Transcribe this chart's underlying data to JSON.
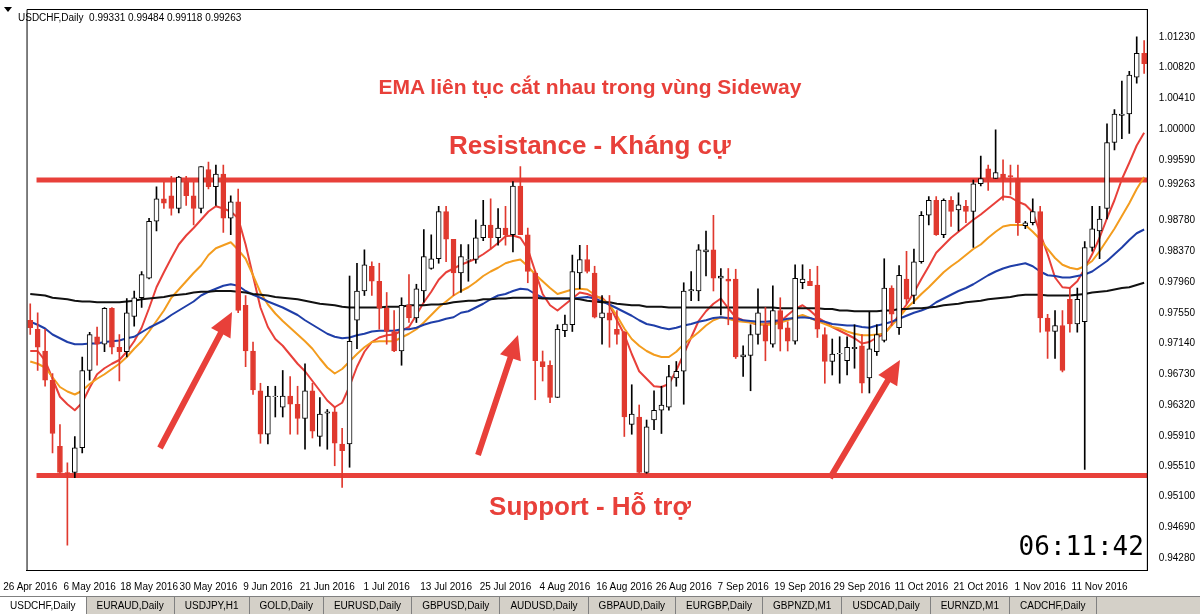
{
  "chart_data": {
    "type": "candlestick",
    "title": "EMA liên tục cắt nhau trong vùng Sideway",
    "subtitle": "USDCHF,Daily  0.99331 0.99484 0.99118 0.99263",
    "categories": [
      "26 Apr 2016",
      null,
      null,
      null,
      null,
      null,
      null,
      null,
      "6 May 2016",
      null,
      null,
      null,
      null,
      null,
      null,
      null,
      "18 May 2016",
      null,
      null,
      null,
      null,
      null,
      null,
      null,
      "30 May 2016",
      null,
      null,
      null,
      null,
      null,
      null,
      null,
      "9 Jun 2016",
      null,
      null,
      null,
      null,
      null,
      null,
      null,
      "21 Jun 2016",
      null,
      null,
      null,
      null,
      null,
      null,
      null,
      "1 Jul 2016",
      null,
      null,
      null,
      null,
      null,
      null,
      null,
      "13 Jul 2016",
      null,
      null,
      null,
      null,
      null,
      null,
      null,
      "25 Jul 2016",
      null,
      null,
      null,
      null,
      null,
      null,
      null,
      "4 Aug 2016",
      null,
      null,
      null,
      null,
      null,
      null,
      null,
      "16 Aug 2016",
      null,
      null,
      null,
      null,
      null,
      null,
      null,
      "26 Aug 2016",
      null,
      null,
      null,
      null,
      null,
      null,
      null,
      "7 Sep 2016",
      null,
      null,
      null,
      null,
      null,
      null,
      null,
      "19 Sep 2016",
      null,
      null,
      null,
      null,
      null,
      null,
      null,
      "29 Sep 2016",
      null,
      null,
      null,
      null,
      null,
      null,
      null,
      "11 Oct 2016",
      null,
      null,
      null,
      null,
      null,
      null,
      null,
      "21 Oct 2016",
      null,
      null,
      null,
      null,
      null,
      null,
      null,
      "1 Nov 2016",
      null,
      null,
      null,
      null,
      null,
      null,
      null,
      "11 Nov 2016",
      null,
      null,
      null,
      null,
      null,
      null
    ],
    "series": [
      {
        "type": "line",
        "color": "#111111",
        "values": [
          0.978,
          0.9779,
          0.9778,
          0.9775,
          0.9774,
          0.9773,
          0.9771,
          0.977,
          0.977,
          0.9769,
          0.9769,
          0.9769,
          0.9769,
          0.977,
          0.9771,
          0.9773,
          0.9774,
          0.9775,
          0.9776,
          0.9778,
          0.9779,
          0.978,
          0.9782,
          0.9783,
          0.9783,
          0.9784,
          0.9784,
          0.9784,
          0.9783,
          0.9782,
          0.978,
          0.9779,
          0.9778,
          0.9776,
          0.9775,
          0.9774,
          0.9773,
          0.9771,
          0.9769,
          0.9767,
          0.9766,
          0.9765,
          0.9763,
          0.9762,
          0.9762,
          0.9762,
          0.9762,
          0.9762,
          0.9763,
          0.9763,
          0.9763,
          0.9765,
          0.9765,
          0.9765,
          0.9766,
          0.9766,
          0.9767,
          0.9769,
          0.977,
          0.9771,
          0.9771,
          0.9773,
          0.9773,
          0.9774,
          0.9774,
          0.9775,
          0.9775,
          0.9775,
          0.9775,
          0.9774,
          0.9774,
          0.9774,
          0.9774,
          0.9774,
          0.9773,
          0.9771,
          0.977,
          0.9769,
          0.9769,
          0.9767,
          0.9766,
          0.9765,
          0.9765,
          0.9763,
          0.9763,
          0.9763,
          0.9762,
          0.9762,
          0.9762,
          0.9762,
          0.9762,
          0.9762,
          0.9762,
          0.9762,
          0.9762,
          0.9762,
          0.9762,
          0.9762,
          0.9762,
          0.9762,
          0.9762,
          0.9761,
          0.9761,
          0.9761,
          0.9761,
          0.9761,
          0.9761,
          0.976,
          0.976,
          0.9758,
          0.9758,
          0.9757,
          0.9757,
          0.9757,
          0.9757,
          0.9758,
          0.9758,
          0.976,
          0.976,
          0.9761,
          0.9761,
          0.9762,
          0.9763,
          0.9765,
          0.9766,
          0.9767,
          0.9769,
          0.977,
          0.9771,
          0.9773,
          0.9774,
          0.9775,
          0.9776,
          0.9778,
          0.9779,
          0.9779,
          0.9779,
          0.9778,
          0.9778,
          0.9778,
          0.9778,
          0.9779,
          0.978,
          0.9782,
          0.9783,
          0.9784,
          0.9786,
          0.9788,
          0.9789,
          0.9792,
          0.9795
        ]
      },
      {
        "type": "line",
        "color": "#1f3ea8",
        "values": [
          0.9743,
          0.9739,
          0.9734,
          0.9726,
          0.9721,
          0.9716,
          0.9713,
          0.9713,
          0.9714,
          0.9714,
          0.9716,
          0.9717,
          0.9718,
          0.9721,
          0.9723,
          0.9729,
          0.9735,
          0.974,
          0.9745,
          0.9752,
          0.9758,
          0.9764,
          0.977,
          0.9778,
          0.9783,
          0.9787,
          0.9791,
          0.9793,
          0.9791,
          0.9784,
          0.9779,
          0.9775,
          0.977,
          0.9766,
          0.9762,
          0.9757,
          0.9752,
          0.9745,
          0.9739,
          0.9733,
          0.9727,
          0.9723,
          0.9721,
          0.9722,
          0.9725,
          0.9727,
          0.973,
          0.9731,
          0.9731,
          0.9731,
          0.9733,
          0.9733,
          0.9735,
          0.9739,
          0.9742,
          0.9744,
          0.9747,
          0.9749,
          0.9755,
          0.9757,
          0.9762,
          0.9767,
          0.9773,
          0.9778,
          0.978,
          0.9784,
          0.9787,
          0.9786,
          0.978,
          0.9775,
          0.9774,
          0.9774,
          0.9774,
          0.9774,
          0.9775,
          0.9776,
          0.9774,
          0.977,
          0.9766,
          0.9761,
          0.9756,
          0.9751,
          0.9745,
          0.974,
          0.9738,
          0.9735,
          0.9733,
          0.9735,
          0.9738,
          0.974,
          0.9743,
          0.9745,
          0.9748,
          0.9749,
          0.9748,
          0.9747,
          0.9745,
          0.9744,
          0.9743,
          0.9743,
          0.9744,
          0.9745,
          0.9747,
          0.9748,
          0.9749,
          0.9748,
          0.9745,
          0.9743,
          0.974,
          0.9739,
          0.9738,
          0.9738,
          0.9736,
          0.9735,
          0.9738,
          0.974,
          0.9743,
          0.9747,
          0.9751,
          0.9755,
          0.9758,
          0.9762,
          0.9769,
          0.9774,
          0.9779,
          0.9784,
          0.9788,
          0.9793,
          0.9799,
          0.9805,
          0.981,
          0.9814,
          0.9817,
          0.9819,
          0.9821,
          0.9817,
          0.981,
          0.9805,
          0.9804,
          0.9802,
          0.9802,
          0.9804,
          0.9806,
          0.981,
          0.9817,
          0.9824,
          0.9833,
          0.9842,
          0.9852,
          0.9861,
          0.9866
        ]
      },
      {
        "type": "line",
        "color": "#f39c1e",
        "values": [
          0.969,
          0.9687,
          0.9682,
          0.9669,
          0.9656,
          0.965,
          0.9646,
          0.9651,
          0.966,
          0.9667,
          0.9673,
          0.968,
          0.9687,
          0.9696,
          0.9707,
          0.9717,
          0.973,
          0.9744,
          0.9758,
          0.9775,
          0.9786,
          0.9797,
          0.9808,
          0.9818,
          0.9832,
          0.9841,
          0.9845,
          0.9849,
          0.9839,
          0.9827,
          0.9805,
          0.9782,
          0.9766,
          0.9754,
          0.9744,
          0.9735,
          0.9726,
          0.9717,
          0.9707,
          0.9694,
          0.9682,
          0.9674,
          0.968,
          0.969,
          0.97,
          0.9709,
          0.9716,
          0.9717,
          0.9717,
          0.9717,
          0.9722,
          0.9727,
          0.9733,
          0.9742,
          0.9752,
          0.9762,
          0.977,
          0.9778,
          0.9784,
          0.9789,
          0.9796,
          0.9804,
          0.981,
          0.9815,
          0.9821,
          0.9824,
          0.9826,
          0.9817,
          0.9806,
          0.9797,
          0.9788,
          0.978,
          0.9783,
          0.9786,
          0.9787,
          0.9786,
          0.9779,
          0.9773,
          0.9766,
          0.9751,
          0.9734,
          0.972,
          0.9711,
          0.9704,
          0.9699,
          0.9696,
          0.9696,
          0.9703,
          0.9713,
          0.9721,
          0.9729,
          0.9738,
          0.9745,
          0.9749,
          0.9747,
          0.9744,
          0.9743,
          0.9742,
          0.974,
          0.9739,
          0.9739,
          0.9742,
          0.9745,
          0.9749,
          0.9752,
          0.9748,
          0.9744,
          0.974,
          0.9736,
          0.9734,
          0.973,
          0.9727,
          0.9725,
          0.9725,
          0.9726,
          0.9727,
          0.9738,
          0.9749,
          0.9761,
          0.977,
          0.978,
          0.9789,
          0.9799,
          0.9809,
          0.9817,
          0.9824,
          0.9832,
          0.984,
          0.9846,
          0.9855,
          0.9863,
          0.987,
          0.9872,
          0.9872,
          0.9872,
          0.9863,
          0.9853,
          0.984,
          0.9828,
          0.9819,
          0.9815,
          0.9813,
          0.9817,
          0.9824,
          0.9837,
          0.9852,
          0.9867,
          0.9884,
          0.9901,
          0.992,
          0.9936
        ]
      },
      {
        "type": "line",
        "color": "#e8403a",
        "values": [
          0.9704,
          0.9704,
          0.9691,
          0.9667,
          0.9643,
          0.9633,
          0.9625,
          0.9635,
          0.9655,
          0.9673,
          0.9681,
          0.9687,
          0.9692,
          0.9703,
          0.9717,
          0.9735,
          0.9761,
          0.9789,
          0.9809,
          0.9828,
          0.9846,
          0.9858,
          0.9868,
          0.9879,
          0.989,
          0.9897,
          0.9894,
          0.989,
          0.9881,
          0.9846,
          0.9804,
          0.9762,
          0.9736,
          0.972,
          0.9711,
          0.9699,
          0.9687,
          0.9677,
          0.9664,
          0.9651,
          0.9638,
          0.9629,
          0.9635,
          0.9657,
          0.9683,
          0.9703,
          0.9716,
          0.9722,
          0.9725,
          0.9726,
          0.9731,
          0.9736,
          0.9752,
          0.9769,
          0.9783,
          0.9799,
          0.9809,
          0.9814,
          0.9819,
          0.9823,
          0.9827,
          0.9833,
          0.984,
          0.9848,
          0.9857,
          0.9858,
          0.9855,
          0.984,
          0.981,
          0.978,
          0.9765,
          0.9758,
          0.9766,
          0.9774,
          0.9782,
          0.978,
          0.9776,
          0.9775,
          0.9765,
          0.9745,
          0.9726,
          0.97,
          0.9677,
          0.9667,
          0.9657,
          0.9656,
          0.966,
          0.9678,
          0.97,
          0.9722,
          0.9744,
          0.9757,
          0.9767,
          0.9774,
          0.9761,
          0.9749,
          0.9745,
          0.9742,
          0.9739,
          0.974,
          0.9742,
          0.9743,
          0.9752,
          0.976,
          0.9765,
          0.9758,
          0.9749,
          0.9743,
          0.9736,
          0.9731,
          0.9726,
          0.9721,
          0.9714,
          0.9716,
          0.9722,
          0.9727,
          0.9739,
          0.9752,
          0.9766,
          0.9782,
          0.98,
          0.9817,
          0.9835,
          0.9845,
          0.9855,
          0.9863,
          0.9871,
          0.9879,
          0.9886,
          0.9894,
          0.9902,
          0.991,
          0.9909,
          0.9903,
          0.9899,
          0.9889,
          0.9861,
          0.9833,
          0.9802,
          0.9789,
          0.9788,
          0.9797,
          0.9814,
          0.9833,
          0.9855,
          0.9881,
          0.9905,
          0.9933,
          0.9955,
          0.9978,
          0.9995
        ]
      },
      {
        "type": "candlestick",
        "colors": [
          "#e0392e",
          "#e0392e",
          "#e0392e",
          "#e0392e",
          "#e0392e",
          "#e0392e",
          "#000000",
          "#000000",
          "#000000",
          "#e0392e",
          "#000000",
          "#e0392e",
          "#e0392e",
          "#000000",
          "#000000",
          "#000000",
          "#000000",
          "#000000",
          "#e0392e",
          "#e0392e",
          "#000000",
          "#e0392e",
          "#e0392e",
          "#000000",
          "#e0392e",
          "#000000",
          "#e0392e",
          "#000000",
          "#e0392e",
          "#e0392e",
          "#e0392e",
          "#e0392e",
          "#000000",
          "#000000",
          "#000000",
          "#e0392e",
          "#e0392e",
          "#000000",
          "#e0392e",
          "#000000",
          "#000000",
          "#e0392e",
          "#e0392e",
          "#000000",
          "#000000",
          "#000000",
          "#e0392e",
          "#e0392e",
          "#e0392e",
          "#e0392e",
          "#000000",
          "#e0392e",
          "#000000",
          "#000000",
          "#000000",
          "#000000",
          "#e0392e",
          "#e0392e",
          "#000000",
          "#000000",
          "#000000",
          "#000000",
          "#e0392e",
          "#000000",
          "#e0392e",
          "#000000",
          "#e0392e",
          "#e0392e",
          "#e0392e",
          "#e0392e",
          "#e0392e",
          "#000000",
          "#000000",
          "#000000",
          "#000000",
          "#e0392e",
          "#e0392e",
          "#000000",
          "#e0392e",
          "#e0392e",
          "#e0392e",
          "#000000",
          "#e0392e",
          "#000000",
          "#000000",
          "#000000",
          "#000000",
          "#000000",
          "#000000",
          "#000000",
          "#000000",
          "#000000",
          "#e0392e",
          "#000000",
          "#e0392e",
          "#e0392e",
          "#000000",
          "#000000",
          "#000000",
          "#e0392e",
          "#000000",
          "#e0392e",
          "#e0392e",
          "#000000",
          "#000000",
          "#e0392e",
          "#e0392e",
          "#e0392e",
          "#000000",
          "#000000",
          "#000000",
          "#000000",
          "#e0392e",
          "#000000",
          "#000000",
          "#000000",
          "#e0392e",
          "#000000",
          "#e0392e",
          "#000000",
          "#000000",
          "#000000",
          "#e0392e",
          "#000000",
          "#e0392e",
          "#000000",
          "#e0392e",
          "#000000",
          "#000000",
          "#e0392e",
          "#000000",
          "#e0392e",
          "#e0392e",
          "#e0392e",
          "#000000",
          "#000000",
          "#e0392e",
          "#e0392e",
          "#000000",
          "#e0392e",
          "#e0392e",
          "#000000",
          "#000000",
          "#000000",
          "#000000",
          "#000000",
          "#000000",
          "#000000",
          "#000000",
          "#000000",
          "#e0392e"
        ],
        "ohlc": [
          [
            0.9745,
            0.9767,
            0.9726,
            0.9735
          ],
          [
            0.9733,
            0.9755,
            0.9678,
            0.9709
          ],
          [
            0.9704,
            0.9733,
            0.9657,
            0.9665
          ],
          [
            0.9665,
            0.9674,
            0.9568,
            0.9594
          ],
          [
            0.9577,
            0.9606,
            0.9541,
            0.9542
          ],
          [
            0.9542,
            0.9555,
            0.9445,
            0.9541
          ],
          [
            0.9542,
            0.959,
            0.9535,
            0.9575
          ],
          [
            0.9575,
            0.9696,
            0.9568,
            0.9678
          ],
          [
            0.9678,
            0.9729,
            0.9665,
            0.9726
          ],
          [
            0.9723,
            0.9736,
            0.9685,
            0.9713
          ],
          [
            0.9713,
            0.9762,
            0.9703,
            0.9761
          ],
          [
            0.9761,
            0.9762,
            0.97,
            0.9709
          ],
          [
            0.9709,
            0.9726,
            0.9664,
            0.9703
          ],
          [
            0.9703,
            0.9774,
            0.9696,
            0.9755
          ],
          [
            0.975,
            0.9784,
            0.9737,
            0.9775
          ],
          [
            0.9775,
            0.981,
            0.9762,
            0.9806
          ],
          [
            0.9801,
            0.9881,
            0.98,
            0.9877
          ],
          [
            0.9877,
            0.9923,
            0.9864,
            0.9907
          ],
          [
            0.9907,
            0.9929,
            0.9894,
            0.9901
          ],
          [
            0.9911,
            0.9937,
            0.9885,
            0.9894
          ],
          [
            0.9894,
            0.9937,
            0.9888,
            0.9936
          ],
          [
            0.993,
            0.9937,
            0.9898,
            0.9911
          ],
          [
            0.9911,
            0.9929,
            0.9872,
            0.9894
          ],
          [
            0.9894,
            0.995,
            0.9888,
            0.995
          ],
          [
            0.9946,
            0.9956,
            0.992,
            0.9923
          ],
          [
            0.9923,
            0.9952,
            0.9898,
            0.994
          ],
          [
            0.994,
            0.9952,
            0.9862,
            0.9881
          ],
          [
            0.9881,
            0.9911,
            0.9859,
            0.9903
          ],
          [
            0.9903,
            0.992,
            0.9755,
            0.9758
          ],
          [
            0.9765,
            0.9778,
            0.9683,
            0.9704
          ],
          [
            0.9704,
            0.9716,
            0.9646,
            0.9652
          ],
          [
            0.9651,
            0.9661,
            0.9581,
            0.9593
          ],
          [
            0.9593,
            0.9657,
            0.958,
            0.9644
          ],
          [
            0.9643,
            0.9657,
            0.9616,
            0.9644
          ],
          [
            0.9629,
            0.9678,
            0.9616,
            0.9644
          ],
          [
            0.9644,
            0.967,
            0.9593,
            0.9633
          ],
          [
            0.9633,
            0.9657,
            0.9593,
            0.9614
          ],
          [
            0.9614,
            0.9687,
            0.9573,
            0.9651
          ],
          [
            0.9651,
            0.9661,
            0.9588,
            0.9597
          ],
          [
            0.959,
            0.9642,
            0.9577,
            0.962
          ],
          [
            0.9621,
            0.9626,
            0.9573,
            0.9623
          ],
          [
            0.9623,
            0.9629,
            0.9551,
            0.9581
          ],
          [
            0.958,
            0.9601,
            0.9522,
            0.9571
          ],
          [
            0.958,
            0.9804,
            0.9549,
            0.9717
          ],
          [
            0.9745,
            0.9821,
            0.9707,
            0.9784
          ],
          [
            0.9784,
            0.9839,
            0.9778,
            0.9819
          ],
          [
            0.9817,
            0.9823,
            0.9778,
            0.9797
          ],
          [
            0.9797,
            0.9821,
            0.9733,
            0.9761
          ],
          [
            0.9761,
            0.9782,
            0.9713,
            0.973
          ],
          [
            0.973,
            0.9758,
            0.9703,
            0.9704
          ],
          [
            0.9704,
            0.9775,
            0.9685,
            0.9765
          ],
          [
            0.9765,
            0.9806,
            0.9742,
            0.9748
          ],
          [
            0.9748,
            0.9793,
            0.9742,
            0.9787
          ],
          [
            0.9784,
            0.9866,
            0.9769,
            0.983
          ],
          [
            0.9814,
            0.9859,
            0.9813,
            0.9827
          ],
          [
            0.9827,
            0.9897,
            0.9821,
            0.989
          ],
          [
            0.989,
            0.9897,
            0.9823,
            0.9853
          ],
          [
            0.9853,
            0.9853,
            0.9778,
            0.9808
          ],
          [
            0.9808,
            0.9846,
            0.9782,
            0.983
          ],
          [
            0.9825,
            0.9846,
            0.9797,
            0.9826
          ],
          [
            0.9826,
            0.9879,
            0.9821,
            0.9855
          ],
          [
            0.9855,
            0.9905,
            0.9851,
            0.9872
          ],
          [
            0.9872,
            0.9907,
            0.984,
            0.9855
          ],
          [
            0.9855,
            0.9894,
            0.9845,
            0.9868
          ],
          [
            0.9868,
            0.9897,
            0.9845,
            0.9859
          ],
          [
            0.9859,
            0.993,
            0.9836,
            0.9924
          ],
          [
            0.9924,
            0.995,
            0.9859,
            0.9859
          ],
          [
            0.9859,
            0.9868,
            0.9795,
            0.981
          ],
          [
            0.9808,
            0.981,
            0.9639,
            0.9691
          ],
          [
            0.969,
            0.9704,
            0.9664,
            0.9683
          ],
          [
            0.9685,
            0.9691,
            0.9635,
            0.9642
          ],
          [
            0.9642,
            0.9739,
            0.9642,
            0.9733
          ],
          [
            0.9731,
            0.9752,
            0.9723,
            0.974
          ],
          [
            0.9739,
            0.9832,
            0.973,
            0.981
          ],
          [
            0.9808,
            0.9845,
            0.9787,
            0.9826
          ],
          [
            0.9826,
            0.9845,
            0.9808,
            0.981
          ],
          [
            0.9808,
            0.9817,
            0.9748,
            0.9749
          ],
          [
            0.9748,
            0.9778,
            0.9713,
            0.9755
          ],
          [
            0.9755,
            0.9778,
            0.9709,
            0.9745
          ],
          [
            0.9733,
            0.9758,
            0.9713,
            0.9726
          ],
          [
            0.9729,
            0.973,
            0.959,
            0.9616
          ],
          [
            0.9606,
            0.9659,
            0.9593,
            0.962
          ],
          [
            0.9616,
            0.9632,
            0.9541,
            0.9542
          ],
          [
            0.9542,
            0.9612,
            0.9541,
            0.9603
          ],
          [
            0.9612,
            0.9651,
            0.9599,
            0.9625
          ],
          [
            0.9625,
            0.9657,
            0.9594,
            0.9632
          ],
          [
            0.9629,
            0.9685,
            0.9625,
            0.967
          ],
          [
            0.9668,
            0.969,
            0.9657,
            0.9677
          ],
          [
            0.9677,
            0.9795,
            0.9633,
            0.9784
          ],
          [
            0.9784,
            0.981,
            0.9771,
            0.9786
          ],
          [
            0.9784,
            0.9846,
            0.9771,
            0.9839
          ],
          [
            0.9836,
            0.9864,
            0.9804,
            0.9839
          ],
          [
            0.9839,
            0.9885,
            0.9784,
            0.9801
          ],
          [
            0.9801,
            0.9814,
            0.9752,
            0.9804
          ],
          [
            0.98,
            0.9814,
            0.9739,
            0.9797
          ],
          [
            0.98,
            0.9813,
            0.9694,
            0.9696
          ],
          [
            0.9696,
            0.9711,
            0.967,
            0.9699
          ],
          [
            0.9698,
            0.9739,
            0.9651,
            0.9726
          ],
          [
            0.9726,
            0.9787,
            0.9713,
            0.9755
          ],
          [
            0.9739,
            0.9762,
            0.9691,
            0.9717
          ],
          [
            0.9713,
            0.9791,
            0.9709,
            0.9758
          ],
          [
            0.9758,
            0.9775,
            0.9704,
            0.9733
          ],
          [
            0.9735,
            0.9743,
            0.9704,
            0.9717
          ],
          [
            0.9717,
            0.9819,
            0.9713,
            0.9801
          ],
          [
            0.9795,
            0.9819,
            0.9787,
            0.98
          ],
          [
            0.9797,
            0.9813,
            0.9791,
            0.9791
          ],
          [
            0.9792,
            0.9817,
            0.9722,
            0.9733
          ],
          [
            0.9726,
            0.9735,
            0.9661,
            0.969
          ],
          [
            0.969,
            0.972,
            0.9672,
            0.97
          ],
          [
            0.97,
            0.9723,
            0.9661,
            0.9701
          ],
          [
            0.9691,
            0.9723,
            0.9672,
            0.9709
          ],
          [
            0.9707,
            0.9739,
            0.9681,
            0.9709
          ],
          [
            0.9711,
            0.9726,
            0.9648,
            0.9661
          ],
          [
            0.9668,
            0.9756,
            0.9648,
            0.9707
          ],
          [
            0.9703,
            0.9739,
            0.9698,
            0.9726
          ],
          [
            0.9718,
            0.9827,
            0.9716,
            0.9788
          ],
          [
            0.9788,
            0.9791,
            0.9738,
            0.9753
          ],
          [
            0.9735,
            0.9818,
            0.9726,
            0.9805
          ],
          [
            0.98,
            0.9837,
            0.9767,
            0.9773
          ],
          [
            0.9778,
            0.984,
            0.9767,
            0.9823
          ],
          [
            0.9823,
            0.989,
            0.9821,
            0.9885
          ],
          [
            0.9885,
            0.991,
            0.9872,
            0.9905
          ],
          [
            0.9905,
            0.991,
            0.9858,
            0.9859
          ],
          [
            0.9859,
            0.9907,
            0.9855,
            0.9905
          ],
          [
            0.9905,
            0.991,
            0.987,
            0.989
          ],
          [
            0.9892,
            0.9915,
            0.9864,
            0.9899
          ],
          [
            0.9897,
            0.9905,
            0.9875,
            0.989
          ],
          [
            0.989,
            0.9932,
            0.9842,
            0.9927
          ],
          [
            0.9927,
            0.9964,
            0.9924,
            0.9934
          ],
          [
            0.9947,
            0.9952,
            0.9918,
            0.9934
          ],
          [
            0.9934,
            0.9999,
            0.9934,
            0.9942
          ],
          [
            0.994,
            0.9959,
            0.9905,
            0.9934
          ],
          [
            0.9938,
            0.9952,
            0.9912,
            0.9936
          ],
          [
            0.9934,
            0.9952,
            0.9858,
            0.9875
          ],
          [
            0.9871,
            0.9877,
            0.9867,
            0.9875
          ],
          [
            0.9875,
            0.9907,
            0.9872,
            0.989
          ],
          [
            0.989,
            0.9897,
            0.9729,
            0.9748
          ],
          [
            0.9748,
            0.9753,
            0.9694,
            0.973
          ],
          [
            0.973,
            0.9758,
            0.9694,
            0.9738
          ],
          [
            0.9738,
            0.9758,
            0.9676,
            0.9678
          ],
          [
            0.9773,
            0.9788,
            0.9729,
            0.974
          ],
          [
            0.974,
            0.9788,
            0.9729,
            0.9773
          ],
          [
            0.9743,
            0.985,
            0.9546,
            0.9842
          ],
          [
            0.9842,
            0.9897,
            0.9837,
            0.9867
          ],
          [
            0.9864,
            0.9897,
            0.9827,
            0.988
          ],
          [
            0.9894,
            1.0007,
            0.988,
            0.9982
          ],
          [
            0.9982,
            1.0026,
            0.9972,
            1.002
          ],
          [
            1.0018,
            1.0064,
            0.9987,
            1.002
          ],
          [
            1.002,
            1.0077,
            0.9994,
            1.0072
          ],
          [
            1.0069,
            1.0123,
            1.0061,
            1.0101
          ],
          [
            1.0101,
            1.0118,
            1.0074,
            1.0087
          ]
        ]
      }
    ],
    "ylim": [
      0.9412,
      1.016
    ],
    "yticks": [
      {
        "value": 1.0123,
        "label": "1.01230"
      },
      {
        "value": 1.0082,
        "label": "1.00820"
      },
      {
        "value": 1.0041,
        "label": "1.00410"
      },
      {
        "value": 1.0,
        "label": "1.00000"
      },
      {
        "value": 0.9959,
        "label": "0.99590"
      },
      {
        "value": 0.99263,
        "label": "0.99263"
      },
      {
        "value": 0.9878,
        "label": "0.98780"
      },
      {
        "value": 0.9837,
        "label": "0.98370"
      },
      {
        "value": 0.9796,
        "label": "0.97960"
      },
      {
        "value": 0.9755,
        "label": "0.97550"
      },
      {
        "value": 0.9714,
        "label": "0.97140"
      },
      {
        "value": 0.9673,
        "label": "0.96730"
      },
      {
        "value": 0.9632,
        "label": "0.96320"
      },
      {
        "value": 0.9591,
        "label": "0.95910"
      },
      {
        "value": 0.9551,
        "label": "0.95510"
      },
      {
        "value": 0.951,
        "label": "0.95100"
      },
      {
        "value": 0.9469,
        "label": "0.94690"
      },
      {
        "value": 0.9428,
        "label": "0.94280"
      }
    ],
    "ref_lines": [
      {
        "axis": "y",
        "value": 0.9932,
        "label": "Resistance - Kháng cự",
        "color": "#e8403a"
      },
      {
        "axis": "y",
        "value": 0.9538,
        "label": "Support - Hỗ trợ",
        "color": "#e8403a"
      }
    ],
    "annotations": [
      "06:11:42",
      "USDCHF,Daily",
      "EURAUD,Daily",
      "USDJPY,H1",
      "GOLD,Daily",
      "EURUSD,Daily",
      "GBPUSD,Daily",
      "AUDUSD,Daily",
      "GBPAUD,Daily",
      "EURGBP,Daily",
      "GBPNZD,M1",
      "USDCAD,Daily",
      "EURNZD,M1",
      "CADCHF,Daily"
    ]
  }
}
